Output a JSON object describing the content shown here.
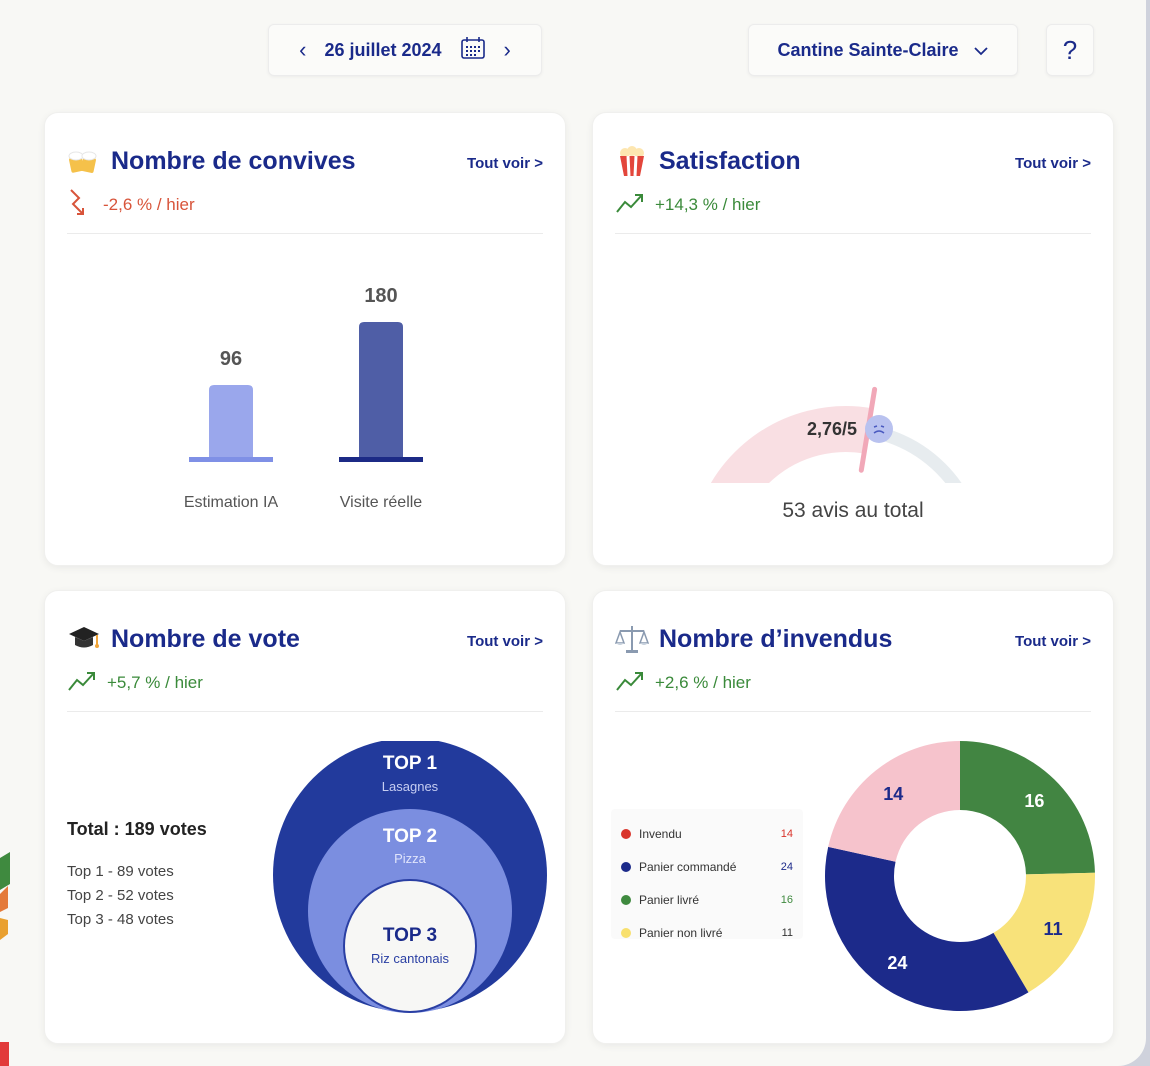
{
  "topbar": {
    "date": "26 juillet 2024",
    "site": "Cantine Sainte-Claire",
    "help": "?"
  },
  "cards": {
    "convives": {
      "title": "Nombre de convives",
      "link": "Tout voir >",
      "trend": "-2,6 % / hier",
      "icon": "beer-icon"
    },
    "satisfaction": {
      "title": "Satisfaction",
      "link": "Tout voir >",
      "trend": "+14,3 % / hier",
      "score": "2,76/5",
      "total": "53 avis au total",
      "icon": "popcorn-icon"
    },
    "vote": {
      "title": "Nombre de vote",
      "link": "Tout voir >",
      "trend": "+5,7 % / hier",
      "total": "Total : 189 votes",
      "lines": [
        "Top 1 - 89 votes",
        "Top 2 - 52 votes",
        "Top 3 - 48 votes"
      ],
      "tops": [
        {
          "rank": "TOP 1",
          "dish": "Lasagnes"
        },
        {
          "rank": "TOP 2",
          "dish": "Pizza"
        },
        {
          "rank": "TOP 3",
          "dish": "Riz cantonais"
        }
      ],
      "icon": "graduation-cap-icon"
    },
    "invendus": {
      "title": "Nombre d’invendus",
      "link": "Tout voir >",
      "trend": "+2,6 % / hier",
      "icon": "scales-icon"
    }
  },
  "chart_data": [
    {
      "type": "bar",
      "categories": [
        "Estimation IA",
        "Visite réelle"
      ],
      "values": [
        96,
        180
      ],
      "colors": [
        "#9aa7ec",
        "#4f5ea6"
      ],
      "base_colors": [
        "#7f90e6",
        "#1c2a86"
      ],
      "ylim": [
        0,
        200
      ]
    },
    {
      "type": "gauge",
      "value": 2.76,
      "max": 5,
      "colors": {
        "filled": "#f9dfe3",
        "empty": "#e7ecef",
        "needle": "#f1a8b8"
      }
    },
    {
      "type": "pie",
      "labels": [
        "Invendu",
        "Panier commandé",
        "Panier livré",
        "Panier non livré"
      ],
      "values": [
        14,
        24,
        16,
        11
      ],
      "colors": [
        "#d9342b",
        "#1c2a8a",
        "#3f8a3f",
        "#f8e06e"
      ],
      "slice_colors": [
        "#f6c3cc",
        "#1c2a8a",
        "#428542",
        "#f8e27a"
      ],
      "label_colors": [
        "#1c2a8a",
        "#ffffff",
        "#ffffff",
        "#1c2a8a"
      ],
      "order": [
        0,
        3,
        2,
        1
      ]
    }
  ]
}
